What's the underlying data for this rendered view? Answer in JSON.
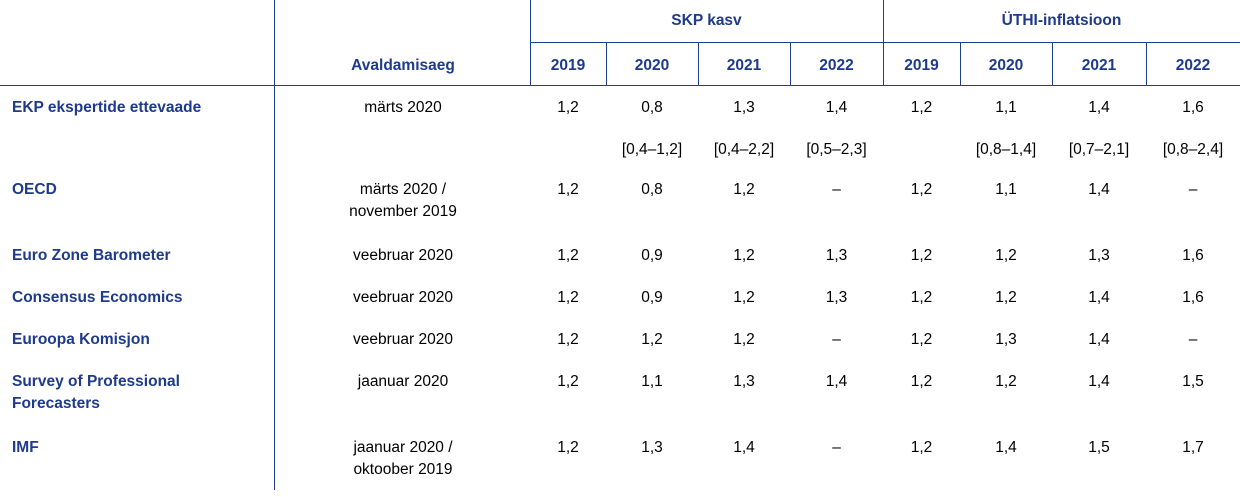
{
  "header": {
    "group_gdp": "SKP kasv",
    "group_hicp": "ÜTHI-inflatsioon",
    "col_date": "Avaldamisaeg",
    "years": [
      "2019",
      "2020",
      "2021",
      "2022",
      "2019",
      "2020",
      "2021",
      "2022"
    ]
  },
  "rows": [
    {
      "name": "EKP ekspertide ettevaade",
      "date": "märts 2020",
      "values": [
        "1,2",
        "0,8",
        "1,3",
        "1,4",
        "1,2",
        "1,1",
        "1,4",
        "1,6"
      ]
    },
    {
      "name": "",
      "date": "",
      "values": [
        "",
        "[0,4–1,2]",
        "[0,4–2,2]",
        "[0,5–2,3]",
        "",
        "[0,8–1,4]",
        "[0,7–2,1]",
        "[0,8–2,4]"
      ]
    },
    {
      "name": "OECD",
      "date": "märts 2020 /\nnovember 2019",
      "values": [
        "1,2",
        "0,8",
        "1,2",
        "–",
        "1,2",
        "1,1",
        "1,4",
        "–"
      ]
    },
    {
      "name": "Euro Zone Barometer",
      "date": "veebruar 2020",
      "values": [
        "1,2",
        "0,9",
        "1,2",
        "1,3",
        "1,2",
        "1,2",
        "1,3",
        "1,6"
      ]
    },
    {
      "name": "Consensus Economics",
      "date": "veebruar 2020",
      "values": [
        "1,2",
        "0,9",
        "1,2",
        "1,3",
        "1,2",
        "1,2",
        "1,4",
        "1,6"
      ]
    },
    {
      "name": "Euroopa Komisjon",
      "date": "veebruar 2020",
      "values": [
        "1,2",
        "1,2",
        "1,2",
        "–",
        "1,2",
        "1,3",
        "1,4",
        "–"
      ]
    },
    {
      "name": "Survey of Professional\nForecasters",
      "date": "jaanuar 2020",
      "values": [
        "1,2",
        "1,1",
        "1,3",
        "1,4",
        "1,2",
        "1,2",
        "1,4",
        "1,5"
      ]
    },
    {
      "name": "IMF",
      "date": "jaanuar 2020 /\noktoober 2019",
      "values": [
        "1,2",
        "1,3",
        "1,4",
        "–",
        "1,2",
        "1,4",
        "1,5",
        "1,7"
      ]
    }
  ]
}
